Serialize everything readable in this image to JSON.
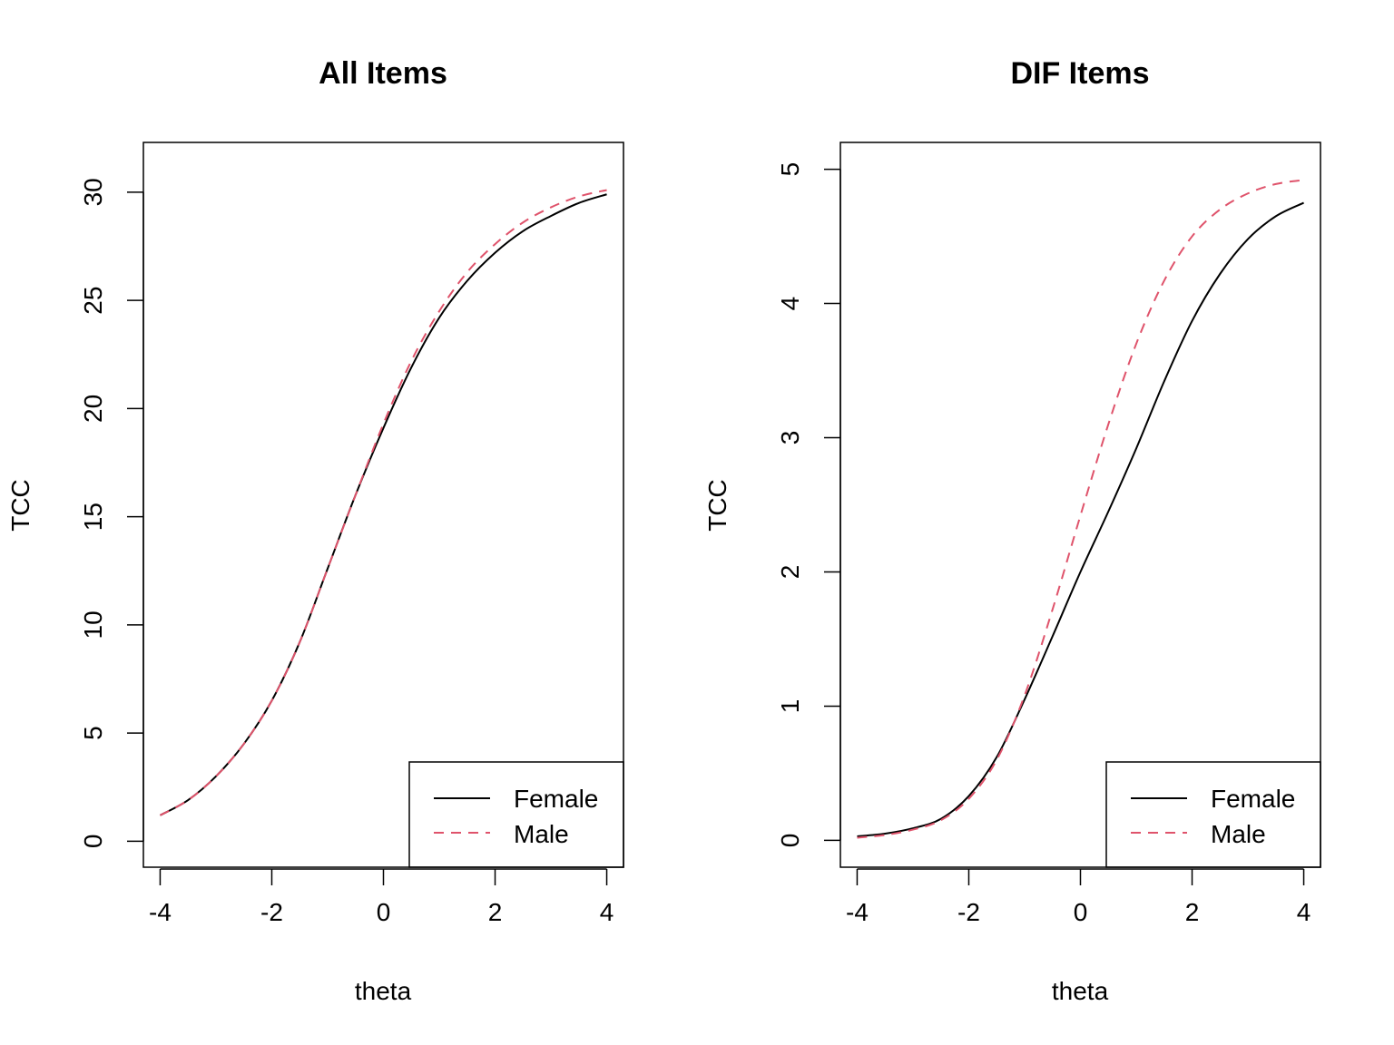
{
  "chart_data": [
    {
      "type": "line",
      "title": "All Items",
      "xlabel": "theta",
      "ylabel": "TCC",
      "xlim": [
        -4.3,
        4.3
      ],
      "ylim": [
        -1.2,
        32.3
      ],
      "xticks": [
        -4,
        -2,
        0,
        2,
        4
      ],
      "xtick_labels": [
        "-4",
        "-2",
        "0",
        "2",
        "4"
      ],
      "yticks": [
        0,
        5,
        10,
        15,
        20,
        25,
        30
      ],
      "ytick_labels": [
        "0",
        "5",
        "10",
        "15",
        "20",
        "25",
        "30"
      ],
      "grid": false,
      "legend": {
        "placement": "bottom-right",
        "entries": [
          "Female",
          "Male"
        ]
      },
      "x": [
        -4,
        -3.5,
        -3,
        -2.5,
        -2,
        -1.5,
        -1,
        -0.5,
        0,
        0.5,
        1,
        1.5,
        2,
        2.5,
        3,
        3.5,
        4
      ],
      "series": [
        {
          "name": "Female",
          "color": "#000000",
          "dash": "solid",
          "values": [
            1.2,
            1.9,
            3.0,
            4.5,
            6.5,
            9.2,
            12.6,
            16.0,
            19.1,
            21.9,
            24.2,
            25.9,
            27.2,
            28.2,
            28.9,
            29.5,
            29.9
          ]
        },
        {
          "name": "Male",
          "color": "#DF536B",
          "dash": "dashed",
          "values": [
            1.2,
            1.9,
            3.0,
            4.5,
            6.5,
            9.2,
            12.6,
            16.0,
            19.3,
            22.2,
            24.5,
            26.3,
            27.6,
            28.6,
            29.3,
            29.8,
            30.1
          ]
        }
      ]
    },
    {
      "type": "line",
      "title": "DIF Items",
      "xlabel": "theta",
      "ylabel": "TCC",
      "xlim": [
        -4.3,
        4.3
      ],
      "ylim": [
        -0.2,
        5.2
      ],
      "xticks": [
        -4,
        -2,
        0,
        2,
        4
      ],
      "xtick_labels": [
        "-4",
        "-2",
        "0",
        "2",
        "4"
      ],
      "yticks": [
        0,
        1,
        2,
        3,
        4,
        5
      ],
      "ytick_labels": [
        "0",
        "1",
        "2",
        "3",
        "4",
        "5"
      ],
      "grid": false,
      "legend": {
        "placement": "bottom-right",
        "entries": [
          "Female",
          "Male"
        ]
      },
      "x": [
        -4,
        -3.5,
        -3,
        -2.5,
        -2,
        -1.5,
        -1,
        -0.5,
        0,
        0.5,
        1,
        1.5,
        2,
        2.5,
        3,
        3.5,
        4
      ],
      "series": [
        {
          "name": "Female",
          "color": "#000000",
          "dash": "solid",
          "values": [
            0.03,
            0.05,
            0.09,
            0.16,
            0.33,
            0.62,
            1.05,
            1.52,
            2.0,
            2.45,
            2.92,
            3.42,
            3.87,
            4.22,
            4.48,
            4.65,
            4.75
          ]
        },
        {
          "name": "Male",
          "color": "#DF536B",
          "dash": "dashed",
          "values": [
            0.02,
            0.04,
            0.08,
            0.15,
            0.31,
            0.6,
            1.08,
            1.72,
            2.42,
            3.1,
            3.7,
            4.17,
            4.5,
            4.7,
            4.82,
            4.89,
            4.92
          ]
        }
      ]
    }
  ]
}
